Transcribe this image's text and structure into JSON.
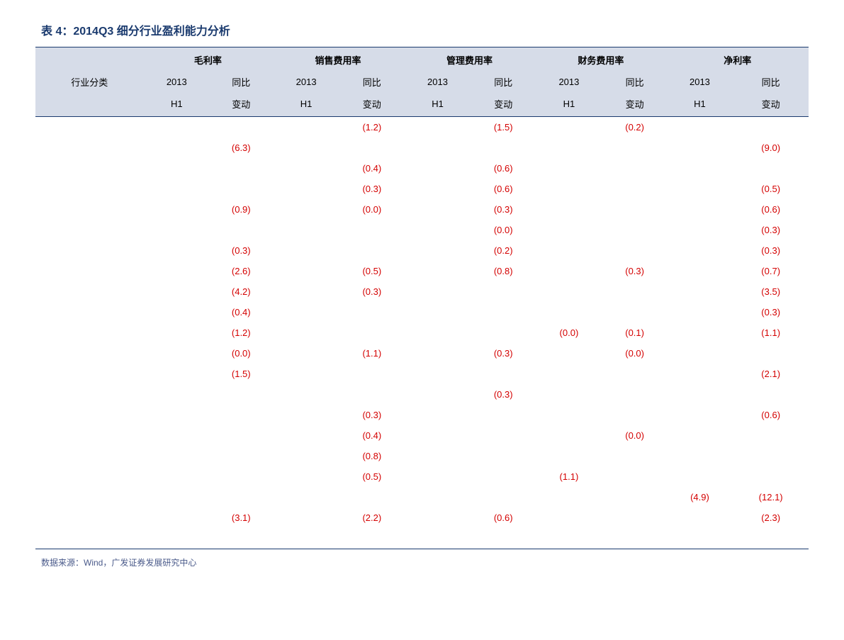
{
  "title": "表 4：2014Q3 细分行业盈利能力分析",
  "source": "数据来源：Wind，广发证券发展研究中心",
  "colors": {
    "title_color": "#1a3a6e",
    "header_bg": "#d6dce8",
    "border_color": "#1a3a6e",
    "negative_color": "#d40000",
    "source_color": "#4a5a8a",
    "background": "#ffffff"
  },
  "typography": {
    "title_fontsize": 16,
    "table_fontsize": 13,
    "source_fontsize": 12,
    "font_family": "Microsoft YaHei"
  },
  "header": {
    "row_label": "行业分类",
    "groups": [
      "毛利率",
      "销售费用率",
      "管理费用率",
      "财务费用率",
      "净利率"
    ],
    "sub1": "2013",
    "sub2": "同比",
    "sub1b": "H1",
    "sub2b": "变动"
  },
  "rows": [
    {
      "label": "",
      "v": [
        "",
        "",
        "",
        "(1.2)",
        "",
        "(1.5)",
        "",
        "(0.2)",
        "",
        ""
      ]
    },
    {
      "label": "",
      "v": [
        "",
        "(6.3)",
        "",
        "",
        "",
        "",
        "",
        "",
        "",
        "(9.0)"
      ]
    },
    {
      "label": "",
      "v": [
        "",
        "",
        "",
        "(0.4)",
        "",
        "(0.6)",
        "",
        "",
        "",
        ""
      ]
    },
    {
      "label": "",
      "v": [
        "",
        "",
        "",
        "(0.3)",
        "",
        "(0.6)",
        "",
        "",
        "",
        "(0.5)"
      ]
    },
    {
      "label": "",
      "v": [
        "",
        "(0.9)",
        "",
        "(0.0)",
        "",
        "(0.3)",
        "",
        "",
        "",
        "(0.6)"
      ]
    },
    {
      "label": "",
      "v": [
        "",
        "",
        "",
        "",
        "",
        "(0.0)",
        "",
        "",
        "",
        "(0.3)"
      ]
    },
    {
      "label": "",
      "v": [
        "",
        "(0.3)",
        "",
        "",
        "",
        "(0.2)",
        "",
        "",
        "",
        "(0.3)"
      ]
    },
    {
      "label": "",
      "v": [
        "",
        "(2.6)",
        "",
        "(0.5)",
        "",
        "(0.8)",
        "",
        "(0.3)",
        "",
        "(0.7)"
      ]
    },
    {
      "label": "",
      "v": [
        "",
        "(4.2)",
        "",
        "(0.3)",
        "",
        "",
        "",
        "",
        "",
        "(3.5)"
      ]
    },
    {
      "label": "",
      "v": [
        "",
        "(0.4)",
        "",
        "",
        "",
        "",
        "",
        "",
        "",
        "(0.3)"
      ]
    },
    {
      "label": "",
      "v": [
        "",
        "(1.2)",
        "",
        "",
        "",
        "",
        "(0.0)",
        "(0.1)",
        "",
        "(1.1)"
      ]
    },
    {
      "label": "",
      "v": [
        "",
        "(0.0)",
        "",
        "(1.1)",
        "",
        "(0.3)",
        "",
        "(0.0)",
        "",
        ""
      ]
    },
    {
      "label": "",
      "v": [
        "",
        "(1.5)",
        "",
        "",
        "",
        "",
        "",
        "",
        "",
        "(2.1)"
      ]
    },
    {
      "label": "",
      "v": [
        "",
        "",
        "",
        "",
        "",
        "(0.3)",
        "",
        "",
        "",
        ""
      ]
    },
    {
      "label": "",
      "v": [
        "",
        "",
        "",
        "(0.3)",
        "",
        "",
        "",
        "",
        "",
        "(0.6)"
      ]
    },
    {
      "label": "",
      "v": [
        "",
        "",
        "",
        "(0.4)",
        "",
        "",
        "",
        "(0.0)",
        "",
        ""
      ]
    },
    {
      "label": "",
      "v": [
        "",
        "",
        "",
        "(0.8)",
        "",
        "",
        "",
        "",
        "",
        ""
      ]
    },
    {
      "label": "",
      "v": [
        "",
        "",
        "",
        "(0.5)",
        "",
        "",
        "(1.1)",
        "",
        "",
        ""
      ]
    },
    {
      "label": "",
      "v": [
        "",
        "",
        "",
        "",
        "",
        "",
        "",
        "",
        "(4.9)",
        "(12.1)"
      ]
    },
    {
      "label": "",
      "v": [
        "",
        "(3.1)",
        "",
        "(2.2)",
        "",
        "(0.6)",
        "",
        "",
        "",
        "(2.3)"
      ]
    },
    {
      "label": "",
      "v": [
        "",
        "",
        "",
        "",
        "",
        "",
        "",
        "",
        "",
        ""
      ]
    }
  ]
}
